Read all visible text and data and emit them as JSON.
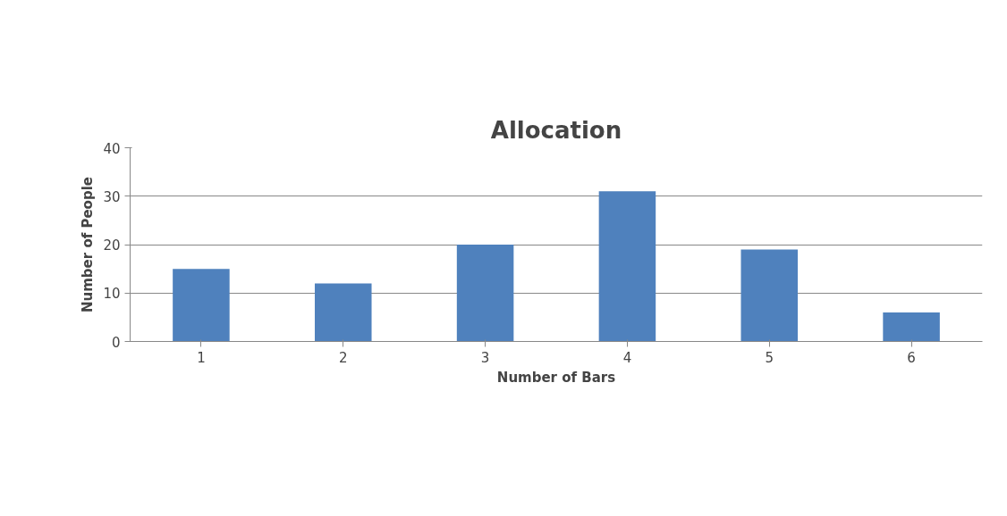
{
  "chart_data": {
    "type": "bar",
    "title": "Allocation",
    "xlabel": "Number of Bars",
    "ylabel": "Number of People",
    "categories": [
      "1",
      "2",
      "3",
      "4",
      "5",
      "6"
    ],
    "series": [
      {
        "color": "#4f81bd",
        "values": [
          15,
          12,
          20,
          31,
          19,
          6
        ]
      }
    ],
    "ylim": [
      0,
      40
    ],
    "yticks": [
      0,
      10,
      20,
      30,
      40
    ],
    "grid": "y"
  }
}
